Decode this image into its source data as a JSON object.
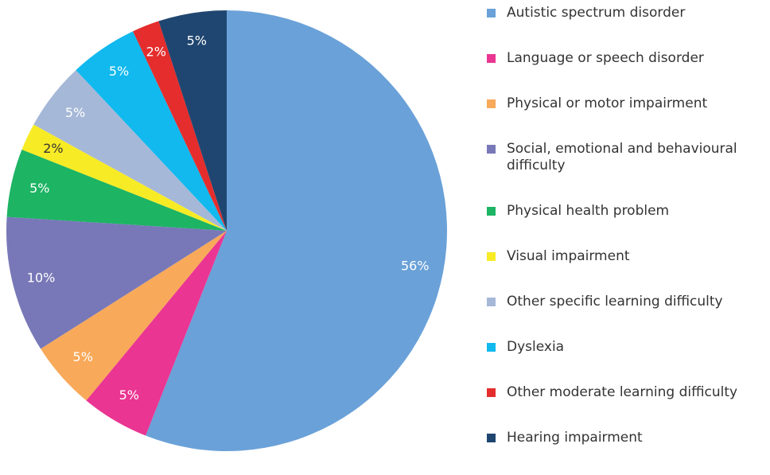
{
  "chart_data": {
    "type": "pie",
    "categories": [
      "Autistic spectrum disorder",
      "Language or speech disorder",
      "Physical or motor impairment",
      "Social, emotional and behavioural difficulty",
      "Physical health problem",
      "Visual impairment",
      "Other specific learning difficulty",
      "Dyslexia",
      "Other moderate learning difficulty",
      "Hearing impairment"
    ],
    "values": [
      56,
      5,
      5,
      10,
      5,
      2,
      5,
      5,
      2,
      5
    ],
    "value_labels": [
      "56%",
      "5%",
      "5%",
      "10%",
      "5%",
      "2%",
      "5%",
      "5%",
      "2%",
      "5%"
    ],
    "colors": [
      "#6aa1d8",
      "#ea3592",
      "#f8a95a",
      "#7878b8",
      "#1db464",
      "#f7eb26",
      "#a6b8d8",
      "#11b9ee",
      "#e42d2c",
      "#1f4670"
    ],
    "legend": "right"
  }
}
